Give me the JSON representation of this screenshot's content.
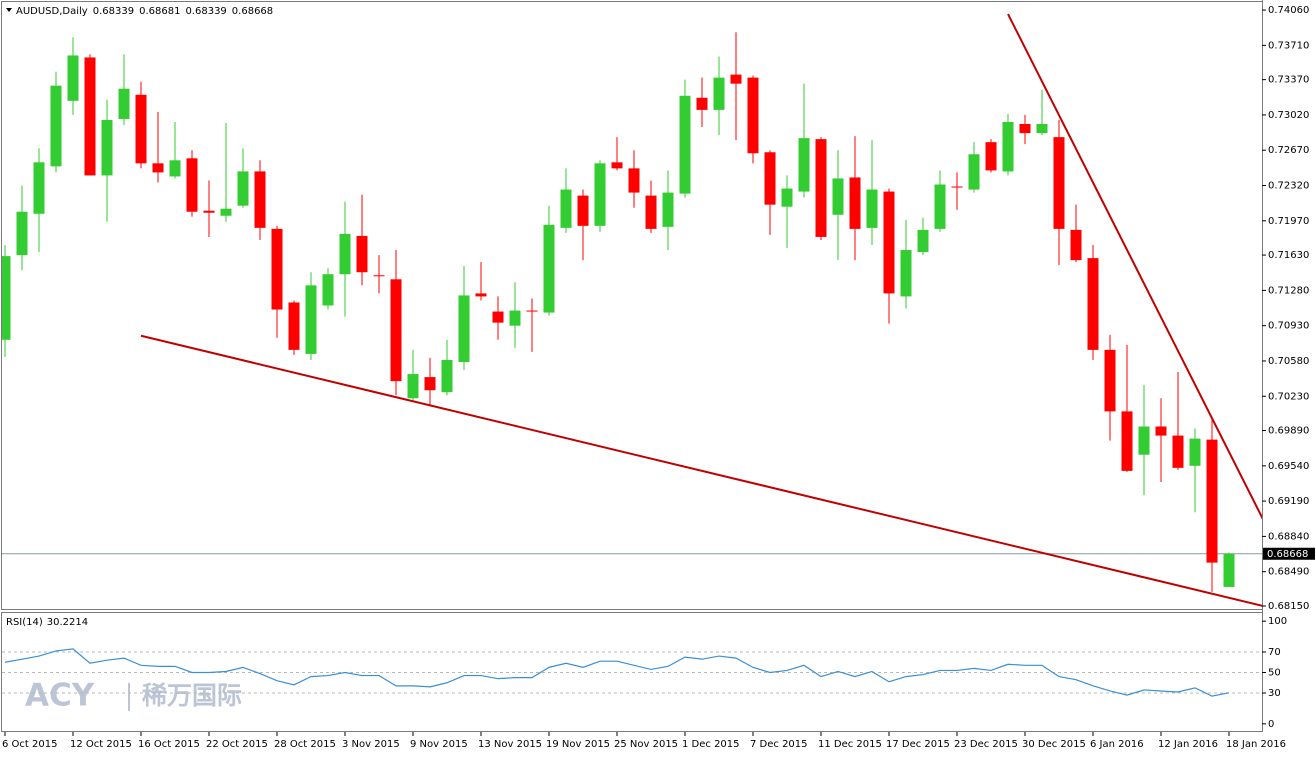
{
  "chart_data": {
    "type": "candlestick",
    "title": "AUDUSD,Daily",
    "categories": [
      "6 Oct 2015",
      null,
      null,
      null,
      "12 Oct 2015",
      null,
      null,
      null,
      "16 Oct 2015",
      null,
      null,
      null,
      "22 Oct 2015",
      null,
      null,
      null,
      "28 Oct 2015",
      null,
      null,
      null,
      "3 Nov 2015",
      null,
      null,
      null,
      "9 Nov 2015",
      null,
      null,
      null,
      "13 Nov 2015",
      null,
      null,
      null,
      "19 Nov 2015",
      null,
      null,
      null,
      "25 Nov 2015",
      null,
      null,
      null,
      "1 Dec 2015",
      null,
      null,
      null,
      "7 Dec 2015",
      null,
      null,
      null,
      "11 Dec 2015",
      null,
      null,
      null,
      "17 Dec 2015",
      null,
      null,
      null,
      "23 Dec 2015",
      null,
      null,
      null,
      "30 Dec 2015",
      null,
      null,
      null,
      "6 Jan 2016",
      null,
      null,
      null,
      "12 Jan 2016",
      null,
      null,
      null,
      "18 Jan 2016"
    ],
    "open": [
      0.7079,
      0.7163,
      0.7204,
      0.7251,
      0.7316,
      0.7359,
      0.7242,
      0.7298,
      0.7322,
      0.7254,
      0.7241,
      0.7259,
      0.7207,
      0.7202,
      0.7212,
      0.7246,
      0.7189,
      0.7116,
      0.7065,
      0.7113,
      0.7144,
      0.7182,
      0.7143,
      0.7139,
      0.7021,
      0.7042,
      0.7027,
      0.7057,
      0.7125,
      0.7107,
      0.7093,
      0.7108,
      0.7106,
      0.719,
      0.7222,
      0.7192,
      0.7255,
      0.7249,
      0.7222,
      0.7191,
      0.7224,
      0.7319,
      0.7307,
      0.7342,
      0.7339,
      0.7265,
      0.7211,
      0.7226,
      0.7278,
      0.7203,
      0.724,
      0.719,
      0.7226,
      0.7122,
      0.7166,
      0.7189,
      0.7231,
      0.7228,
      0.7275,
      0.7246,
      0.7293,
      0.7284,
      0.728,
      0.7188,
      0.716,
      0.7069,
      0.7008,
      0.6965,
      0.6993,
      0.6984,
      0.6954,
      0.698,
      0.68339
    ],
    "high": [
      0.7173,
      0.7232,
      0.7269,
      0.7345,
      0.7379,
      0.7362,
      0.7317,
      0.7362,
      0.7335,
      0.7305,
      0.7295,
      0.7267,
      0.7237,
      0.7294,
      0.7269,
      0.7257,
      0.7192,
      0.7118,
      0.7146,
      0.715,
      0.7216,
      0.7223,
      0.7163,
      0.7168,
      0.7069,
      0.7061,
      0.7079,
      0.7152,
      0.7156,
      0.7122,
      0.7136,
      0.712,
      0.7212,
      0.7249,
      0.7228,
      0.7257,
      0.728,
      0.7267,
      0.7237,
      0.7247,
      0.7337,
      0.7339,
      0.736,
      0.7384,
      0.7341,
      0.7267,
      0.7242,
      0.7333,
      0.728,
      0.7267,
      0.7281,
      0.7277,
      0.7229,
      0.7198,
      0.72,
      0.7247,
      0.7245,
      0.7275,
      0.7278,
      0.7303,
      0.7302,
      0.7327,
      0.7297,
      0.7213,
      0.7173,
      0.7084,
      0.7074,
      0.7034,
      0.7021,
      0.7047,
      0.6991,
      0.7,
      0.68681
    ],
    "low": [
      0.7062,
      0.7148,
      0.7166,
      0.7245,
      0.7302,
      0.7242,
      0.7196,
      0.7292,
      0.7249,
      0.7235,
      0.7239,
      0.7201,
      0.7181,
      0.7196,
      0.721,
      0.7178,
      0.7081,
      0.7064,
      0.7059,
      0.7109,
      0.7102,
      0.7133,
      0.7125,
      0.7024,
      0.7019,
      0.7014,
      0.7024,
      0.7049,
      0.7118,
      0.7079,
      0.7071,
      0.7067,
      0.7103,
      0.7185,
      0.7158,
      0.7186,
      0.7247,
      0.721,
      0.7185,
      0.7168,
      0.722,
      0.729,
      0.7282,
      0.7277,
      0.7254,
      0.7183,
      0.717,
      0.722,
      0.7178,
      0.7158,
      0.7158,
      0.7173,
      0.7095,
      0.711,
      0.7163,
      0.7186,
      0.7208,
      0.7225,
      0.7245,
      0.7242,
      0.7273,
      0.7282,
      0.7153,
      0.7156,
      0.7059,
      0.6979,
      0.6948,
      0.6925,
      0.6938,
      0.695,
      0.6908,
      0.6829,
      0.68339
    ],
    "close": [
      0.7162,
      0.7206,
      0.7255,
      0.7331,
      0.7361,
      0.7242,
      0.7297,
      0.7328,
      0.7254,
      0.7245,
      0.7257,
      0.7206,
      0.7205,
      0.7209,
      0.7246,
      0.719,
      0.7109,
      0.7069,
      0.7133,
      0.7144,
      0.7184,
      0.7146,
      0.7142,
      0.7038,
      0.7045,
      0.7029,
      0.7059,
      0.7123,
      0.7122,
      0.7096,
      0.7108,
      0.7107,
      0.7193,
      0.7228,
      0.7192,
      0.7254,
      0.7249,
      0.7225,
      0.7189,
      0.7225,
      0.7321,
      0.7307,
      0.7339,
      0.7333,
      0.7264,
      0.7213,
      0.7229,
      0.7279,
      0.7181,
      0.7239,
      0.7189,
      0.7228,
      0.7125,
      0.7168,
      0.7188,
      0.7233,
      0.723,
      0.7263,
      0.7247,
      0.7295,
      0.7284,
      0.7293,
      0.7189,
      0.7158,
      0.7069,
      0.7008,
      0.6949,
      0.6993,
      0.6984,
      0.6952,
      0.6981,
      0.6858,
      0.68668
    ],
    "up_color": "#33cc33",
    "down_color": "#ff0000",
    "ylim": [
      0.6813,
      0.7414
    ],
    "yticks": [
      {
        "value": 0.7406,
        "label": "0.74060"
      },
      {
        "value": 0.7371,
        "label": "0.73710"
      },
      {
        "value": 0.7337,
        "label": "0.73370"
      },
      {
        "value": 0.7302,
        "label": "0.73020"
      },
      {
        "value": 0.7267,
        "label": "0.72670"
      },
      {
        "value": 0.7232,
        "label": "0.72320"
      },
      {
        "value": 0.7197,
        "label": "0.71970"
      },
      {
        "value": 0.7163,
        "label": "0.71630"
      },
      {
        "value": 0.7128,
        "label": "0.71280"
      },
      {
        "value": 0.7093,
        "label": "0.70930"
      },
      {
        "value": 0.7058,
        "label": "0.70580"
      },
      {
        "value": 0.7023,
        "label": "0.70230"
      },
      {
        "value": 0.6989,
        "label": "0.69890"
      },
      {
        "value": 0.6954,
        "label": "0.69540"
      },
      {
        "value": 0.6919,
        "label": "0.69190"
      },
      {
        "value": 0.6884,
        "label": "0.68840"
      },
      {
        "value": 0.6849,
        "label": "0.68490"
      },
      {
        "value": 0.6815,
        "label": "0.68150"
      }
    ],
    "grid": false,
    "price_line_color": "#8c9aa0",
    "trendlines": [
      {
        "from": [
          8,
          0.7083
        ],
        "to": [
          74,
          0.6815
        ],
        "color": "#c00000"
      },
      {
        "from": [
          59,
          0.7402
        ],
        "to": [
          74,
          0.6901
        ],
        "color": "#c00000"
      }
    ],
    "rsi": {
      "name": "RSI(14)",
      "color": "#3a8fd6",
      "values": [
        60,
        63,
        66,
        71,
        73,
        59,
        62,
        64,
        57,
        56,
        56,
        50,
        50,
        51,
        55,
        49,
        42,
        38,
        46,
        47,
        50,
        47,
        47,
        37,
        37,
        36,
        40,
        47,
        47,
        44,
        45,
        45,
        55,
        59,
        55,
        61,
        61,
        57,
        53,
        56,
        65,
        63,
        66,
        64,
        55,
        50,
        52,
        57,
        46,
        51,
        46,
        51,
        41,
        46,
        48,
        52,
        52,
        54,
        52,
        58,
        57,
        57,
        46,
        43,
        37,
        32,
        28,
        33,
        32,
        31,
        35,
        27,
        30.2214
      ],
      "ylim": [
        -7,
        107
      ],
      "yticks": [
        100,
        70,
        50,
        30,
        0
      ],
      "levels": [
        70,
        50,
        30
      ]
    },
    "watermark": {
      "latin": "ACY",
      "chinese": "稀万国际"
    }
  }
}
